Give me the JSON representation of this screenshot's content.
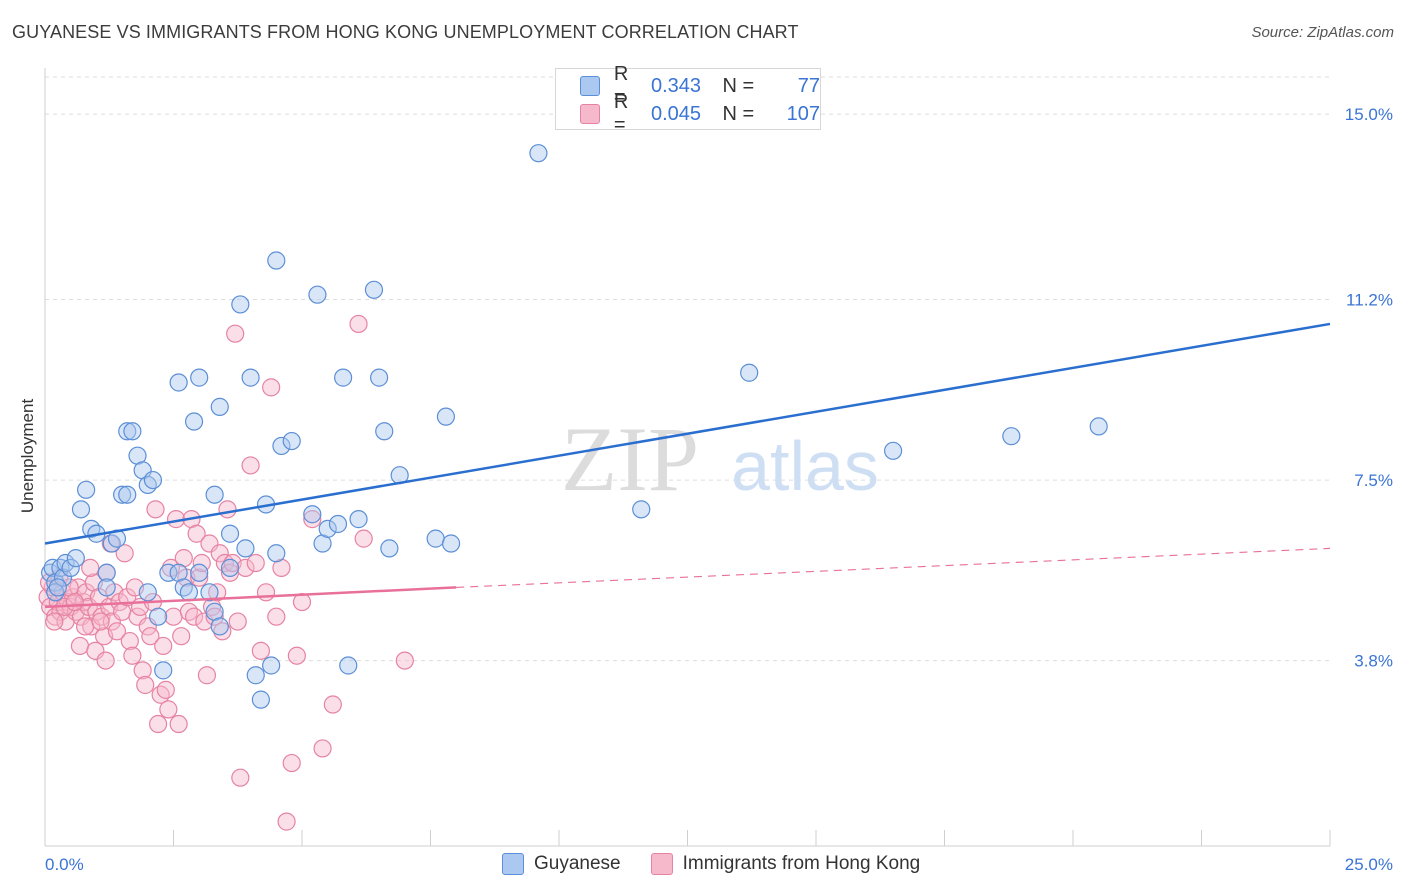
{
  "title": "GUYANESE VS IMMIGRANTS FROM HONG KONG UNEMPLOYMENT CORRELATION CHART",
  "source": "Source: ZipAtlas.com",
  "watermark": {
    "zip": "ZIP",
    "atlas": "atlas"
  },
  "legend": [
    {
      "r_label": "R =",
      "r_value": "0.343",
      "n_label": "N =",
      "n_value": "77"
    },
    {
      "r_label": "R =",
      "r_value": "0.045",
      "n_label": "N =",
      "n_value": "107"
    }
  ],
  "colors": {
    "guyanese_fill": "#aac8f0",
    "guyanese_stroke": "#5c8fd6",
    "guyanese_line": "#2a6fcf",
    "hk_fill": "#f6b8cb",
    "hk_stroke": "#e683a3",
    "hk_line": "#e8709a",
    "grid": "#dddddd",
    "tick_label": "#3a74d4"
  },
  "chart_data": {
    "type": "scatter",
    "title": "GUYANESE VS IMMIGRANTS FROM HONG KONG UNEMPLOYMENT CORRELATION CHART",
    "xlabel": "",
    "ylabel": "Unemployment",
    "xlim": [
      0,
      25
    ],
    "ylim": [
      0,
      15.7
    ],
    "x_tick_labels": [
      "0.0%",
      "25.0%"
    ],
    "y_ticks": [
      3.8,
      7.5,
      11.2,
      15.0
    ],
    "y_tick_labels": [
      "3.8%",
      "7.5%",
      "11.2%",
      "15.0%"
    ],
    "series": [
      {
        "name": "Guyanese",
        "regression": {
          "x": [
            0,
            25
          ],
          "y": [
            6.2,
            10.7
          ]
        },
        "points": [
          [
            0.1,
            5.6
          ],
          [
            0.15,
            5.7
          ],
          [
            0.2,
            5.4
          ],
          [
            0.3,
            5.7
          ],
          [
            0.35,
            5.5
          ],
          [
            0.2,
            5.2
          ],
          [
            0.4,
            5.8
          ],
          [
            0.5,
            5.7
          ],
          [
            0.6,
            5.9
          ],
          [
            0.7,
            6.9
          ],
          [
            0.8,
            7.3
          ],
          [
            0.9,
            6.5
          ],
          [
            1.0,
            6.4
          ],
          [
            1.2,
            5.6
          ],
          [
            1.3,
            6.2
          ],
          [
            1.4,
            6.3
          ],
          [
            1.2,
            5.3
          ],
          [
            1.5,
            7.2
          ],
          [
            1.6,
            7.2
          ],
          [
            1.6,
            8.5
          ],
          [
            1.7,
            8.5
          ],
          [
            1.8,
            8.0
          ],
          [
            1.9,
            7.7
          ],
          [
            2.0,
            7.4
          ],
          [
            2.0,
            5.2
          ],
          [
            2.1,
            7.5
          ],
          [
            2.2,
            4.7
          ],
          [
            2.3,
            3.6
          ],
          [
            2.4,
            5.6
          ],
          [
            2.6,
            5.6
          ],
          [
            2.7,
            5.3
          ],
          [
            2.6,
            9.5
          ],
          [
            2.8,
            5.2
          ],
          [
            2.9,
            8.7
          ],
          [
            3.0,
            5.6
          ],
          [
            3.0,
            9.6
          ],
          [
            3.2,
            5.2
          ],
          [
            3.3,
            4.8
          ],
          [
            3.3,
            7.2
          ],
          [
            3.4,
            4.5
          ],
          [
            3.4,
            9.0
          ],
          [
            3.6,
            6.4
          ],
          [
            3.6,
            5.7
          ],
          [
            3.8,
            11.1
          ],
          [
            3.9,
            6.1
          ],
          [
            4.0,
            9.6
          ],
          [
            4.1,
            3.5
          ],
          [
            4.2,
            3.0
          ],
          [
            4.3,
            7.0
          ],
          [
            4.4,
            3.7
          ],
          [
            4.5,
            12.0
          ],
          [
            4.5,
            6.0
          ],
          [
            4.6,
            8.2
          ],
          [
            4.8,
            8.3
          ],
          [
            5.2,
            6.8
          ],
          [
            5.3,
            11.3
          ],
          [
            5.4,
            6.2
          ],
          [
            5.5,
            6.5
          ],
          [
            5.7,
            6.6
          ],
          [
            5.8,
            9.6
          ],
          [
            5.9,
            3.7
          ],
          [
            6.1,
            6.7
          ],
          [
            6.4,
            11.4
          ],
          [
            6.5,
            9.6
          ],
          [
            6.6,
            8.5
          ],
          [
            6.7,
            6.1
          ],
          [
            6.9,
            7.6
          ],
          [
            7.6,
            6.3
          ],
          [
            7.8,
            8.8
          ],
          [
            7.9,
            6.2
          ],
          [
            9.6,
            14.2
          ],
          [
            11.6,
            6.9
          ],
          [
            13.7,
            9.7
          ],
          [
            16.5,
            8.1
          ],
          [
            18.8,
            8.4
          ],
          [
            20.5,
            8.6
          ],
          [
            0.25,
            5.3
          ]
        ]
      },
      {
        "name": "Immigrants from Hong Kong",
        "regression": {
          "x": [
            0,
            8.0
          ],
          "y": [
            4.9,
            5.3
          ]
        },
        "regression_dashed": {
          "x": [
            8.0,
            25
          ],
          "y": [
            5.3,
            6.1
          ]
        },
        "points": [
          [
            0.05,
            5.1
          ],
          [
            0.1,
            4.9
          ],
          [
            0.15,
            5.3
          ],
          [
            0.2,
            4.7
          ],
          [
            0.25,
            5.0
          ],
          [
            0.3,
            4.8
          ],
          [
            0.35,
            5.2
          ],
          [
            0.4,
            4.6
          ],
          [
            0.45,
            5.0
          ],
          [
            0.5,
            4.9
          ],
          [
            0.55,
            5.1
          ],
          [
            0.6,
            4.8
          ],
          [
            0.65,
            5.3
          ],
          [
            0.7,
            4.7
          ],
          [
            0.75,
            5.0
          ],
          [
            0.8,
            5.2
          ],
          [
            0.85,
            4.9
          ],
          [
            0.9,
            4.5
          ],
          [
            0.95,
            5.4
          ],
          [
            1.0,
            4.8
          ],
          [
            1.05,
            5.1
          ],
          [
            1.1,
            4.7
          ],
          [
            1.15,
            4.3
          ],
          [
            1.2,
            5.6
          ],
          [
            1.25,
            4.9
          ],
          [
            1.3,
            4.6
          ],
          [
            1.35,
            5.2
          ],
          [
            1.4,
            4.4
          ],
          [
            1.45,
            5.0
          ],
          [
            1.5,
            4.8
          ],
          [
            1.55,
            6.0
          ],
          [
            1.6,
            5.1
          ],
          [
            1.65,
            4.2
          ],
          [
            1.7,
            3.9
          ],
          [
            1.75,
            5.3
          ],
          [
            1.8,
            4.7
          ],
          [
            1.85,
            4.9
          ],
          [
            1.9,
            3.6
          ],
          [
            1.95,
            3.3
          ],
          [
            2.0,
            4.5
          ],
          [
            2.05,
            4.3
          ],
          [
            2.1,
            5.0
          ],
          [
            2.15,
            6.9
          ],
          [
            2.2,
            2.5
          ],
          [
            2.25,
            3.1
          ],
          [
            2.3,
            4.1
          ],
          [
            2.35,
            3.2
          ],
          [
            2.4,
            2.8
          ],
          [
            2.45,
            5.7
          ],
          [
            2.5,
            4.7
          ],
          [
            2.55,
            6.7
          ],
          [
            2.6,
            2.5
          ],
          [
            2.65,
            4.3
          ],
          [
            2.7,
            5.9
          ],
          [
            2.75,
            5.5
          ],
          [
            2.8,
            4.8
          ],
          [
            2.85,
            6.7
          ],
          [
            2.9,
            4.7
          ],
          [
            2.95,
            6.4
          ],
          [
            3.0,
            5.5
          ],
          [
            3.05,
            5.8
          ],
          [
            3.1,
            4.6
          ],
          [
            3.15,
            3.5
          ],
          [
            3.2,
            6.2
          ],
          [
            3.25,
            4.9
          ],
          [
            3.3,
            4.7
          ],
          [
            3.35,
            5.2
          ],
          [
            3.4,
            6.0
          ],
          [
            3.45,
            4.4
          ],
          [
            3.5,
            5.8
          ],
          [
            3.55,
            6.9
          ],
          [
            3.6,
            5.6
          ],
          [
            3.65,
            5.8
          ],
          [
            3.7,
            10.5
          ],
          [
            3.75,
            4.6
          ],
          [
            3.8,
            1.4
          ],
          [
            3.9,
            5.7
          ],
          [
            4.0,
            7.8
          ],
          [
            4.1,
            5.8
          ],
          [
            4.2,
            4.0
          ],
          [
            4.3,
            5.2
          ],
          [
            4.4,
            9.4
          ],
          [
            4.5,
            4.7
          ],
          [
            4.6,
            5.7
          ],
          [
            4.7,
            0.5
          ],
          [
            4.8,
            1.7
          ],
          [
            4.9,
            3.9
          ],
          [
            5.0,
            5.0
          ],
          [
            5.2,
            6.7
          ],
          [
            5.4,
            2.0
          ],
          [
            5.6,
            2.9
          ],
          [
            6.1,
            10.7
          ],
          [
            6.2,
            6.3
          ],
          [
            0.08,
            5.4
          ],
          [
            0.18,
            4.6
          ],
          [
            0.28,
            5.5
          ],
          [
            0.38,
            4.9
          ],
          [
            0.48,
            5.3
          ],
          [
            0.58,
            5.0
          ],
          [
            0.68,
            4.1
          ],
          [
            0.78,
            4.5
          ],
          [
            0.88,
            5.7
          ],
          [
            0.98,
            4.0
          ],
          [
            1.08,
            4.6
          ],
          [
            1.18,
            3.8
          ],
          [
            1.28,
            6.2
          ],
          [
            7.0,
            3.8
          ]
        ]
      }
    ]
  },
  "bottom_legend": [
    "Guyanese",
    "Immigrants from Hong Kong"
  ]
}
